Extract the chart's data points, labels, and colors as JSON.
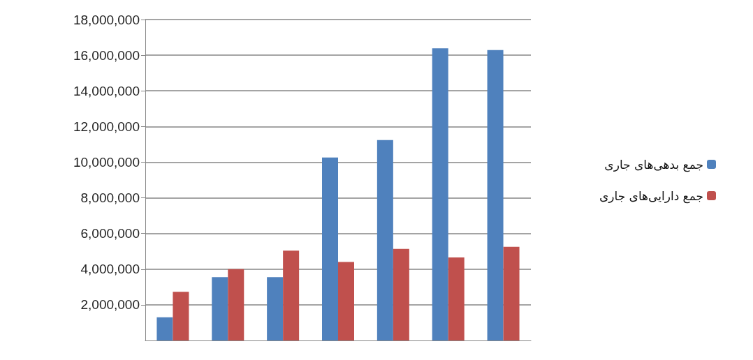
{
  "chart_data": {
    "type": "bar",
    "categories": [
      null,
      null,
      null,
      null,
      null,
      null,
      null
    ],
    "series": [
      {
        "name": "جمع بدهی‌های جاری",
        "color": "#4f81bd",
        "values": [
          1300000,
          3550000,
          3550000,
          10260000,
          11240000,
          16390000,
          16290000
        ]
      },
      {
        "name": "جمع دارایی‌های جاری",
        "color": "#c0504d",
        "values": [
          2730000,
          4000000,
          5040000,
          4400000,
          5140000,
          4660000,
          5250000
        ]
      }
    ],
    "ylim": [
      0,
      18000000
    ],
    "yticks": [
      {
        "value": 2000000,
        "label": "2,000,000"
      },
      {
        "value": 4000000,
        "label": "4,000,000"
      },
      {
        "value": 6000000,
        "label": "6,000,000"
      },
      {
        "value": 8000000,
        "label": "8,000,000"
      },
      {
        "value": 10000000,
        "label": "10,000,000"
      },
      {
        "value": 12000000,
        "label": "12,000,000"
      },
      {
        "value": 14000000,
        "label": "14,000,000"
      },
      {
        "value": 16000000,
        "label": "16,000,000"
      },
      {
        "value": 18000000,
        "label": "18,000,000"
      }
    ],
    "grid": "y",
    "legend": "right"
  }
}
